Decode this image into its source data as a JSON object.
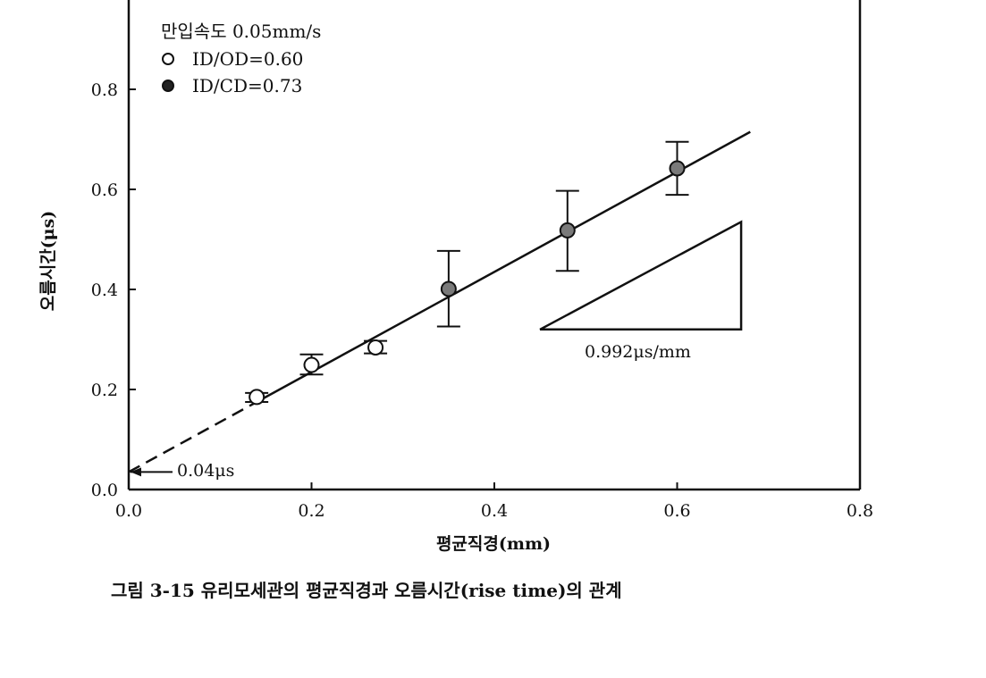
{
  "chart_data": {
    "type": "scatter",
    "caption": "그림 3-15  유리모세관의 평균직경과 오름시간(rise time)의 관계",
    "xlabel": "평균직경(mm)",
    "ylabel": "오름시간(μs)",
    "xlim": [
      0.0,
      0.8
    ],
    "ylim": [
      0.0,
      1.0
    ],
    "xticks": [
      0.0,
      0.2,
      0.4,
      0.6,
      0.8
    ],
    "xtick_labels": [
      "0.0",
      "0.2",
      "0.4",
      "0.6",
      "0.8"
    ],
    "yticks": [
      0.0,
      0.2,
      0.4,
      0.6,
      0.8
    ],
    "ytick_labels": [
      "0.0",
      "0.2",
      "0.4",
      "0.6",
      "0.8"
    ],
    "legend": {
      "title": "만입속도 0.05mm/s",
      "placement": "top-left",
      "entries": [
        {
          "label": "ID/OD=0.60",
          "marker": "open-circle"
        },
        {
          "label": "ID/CD=0.73",
          "marker": "filled-circle"
        }
      ]
    },
    "series": [
      {
        "name": "ID/OD=0.60",
        "marker": "open-circle",
        "color": "#ffffff",
        "points": [
          {
            "x": 0.14,
            "y": 0.185,
            "err_low": 0.175,
            "err_high": 0.193
          },
          {
            "x": 0.2,
            "y": 0.249,
            "err_low": 0.23,
            "err_high": 0.27
          },
          {
            "x": 0.27,
            "y": 0.284,
            "err_low": 0.272,
            "err_high": 0.297
          }
        ]
      },
      {
        "name": "ID/CD=0.73",
        "marker": "filled-circle",
        "color": "#7a7a7a",
        "points": [
          {
            "x": 0.35,
            "y": 0.401,
            "err_low": 0.326,
            "err_high": 0.477
          },
          {
            "x": 0.48,
            "y": 0.518,
            "err_low": 0.437,
            "err_high": 0.597
          },
          {
            "x": 0.6,
            "y": 0.642,
            "err_low": 0.589,
            "err_high": 0.695
          }
        ]
      }
    ],
    "fit_line": {
      "intercept": 0.035,
      "slope": 1.0,
      "solid_range": [
        0.14,
        0.68
      ],
      "dashed_range": [
        0.0,
        0.14
      ]
    },
    "annotations": {
      "intercept_label": "0.04μs",
      "slope_label": "0.992μs/mm"
    },
    "slope_triangle": {
      "points": [
        [
          0.45,
          0.32
        ],
        [
          0.67,
          0.32
        ],
        [
          0.67,
          0.535
        ]
      ]
    }
  }
}
